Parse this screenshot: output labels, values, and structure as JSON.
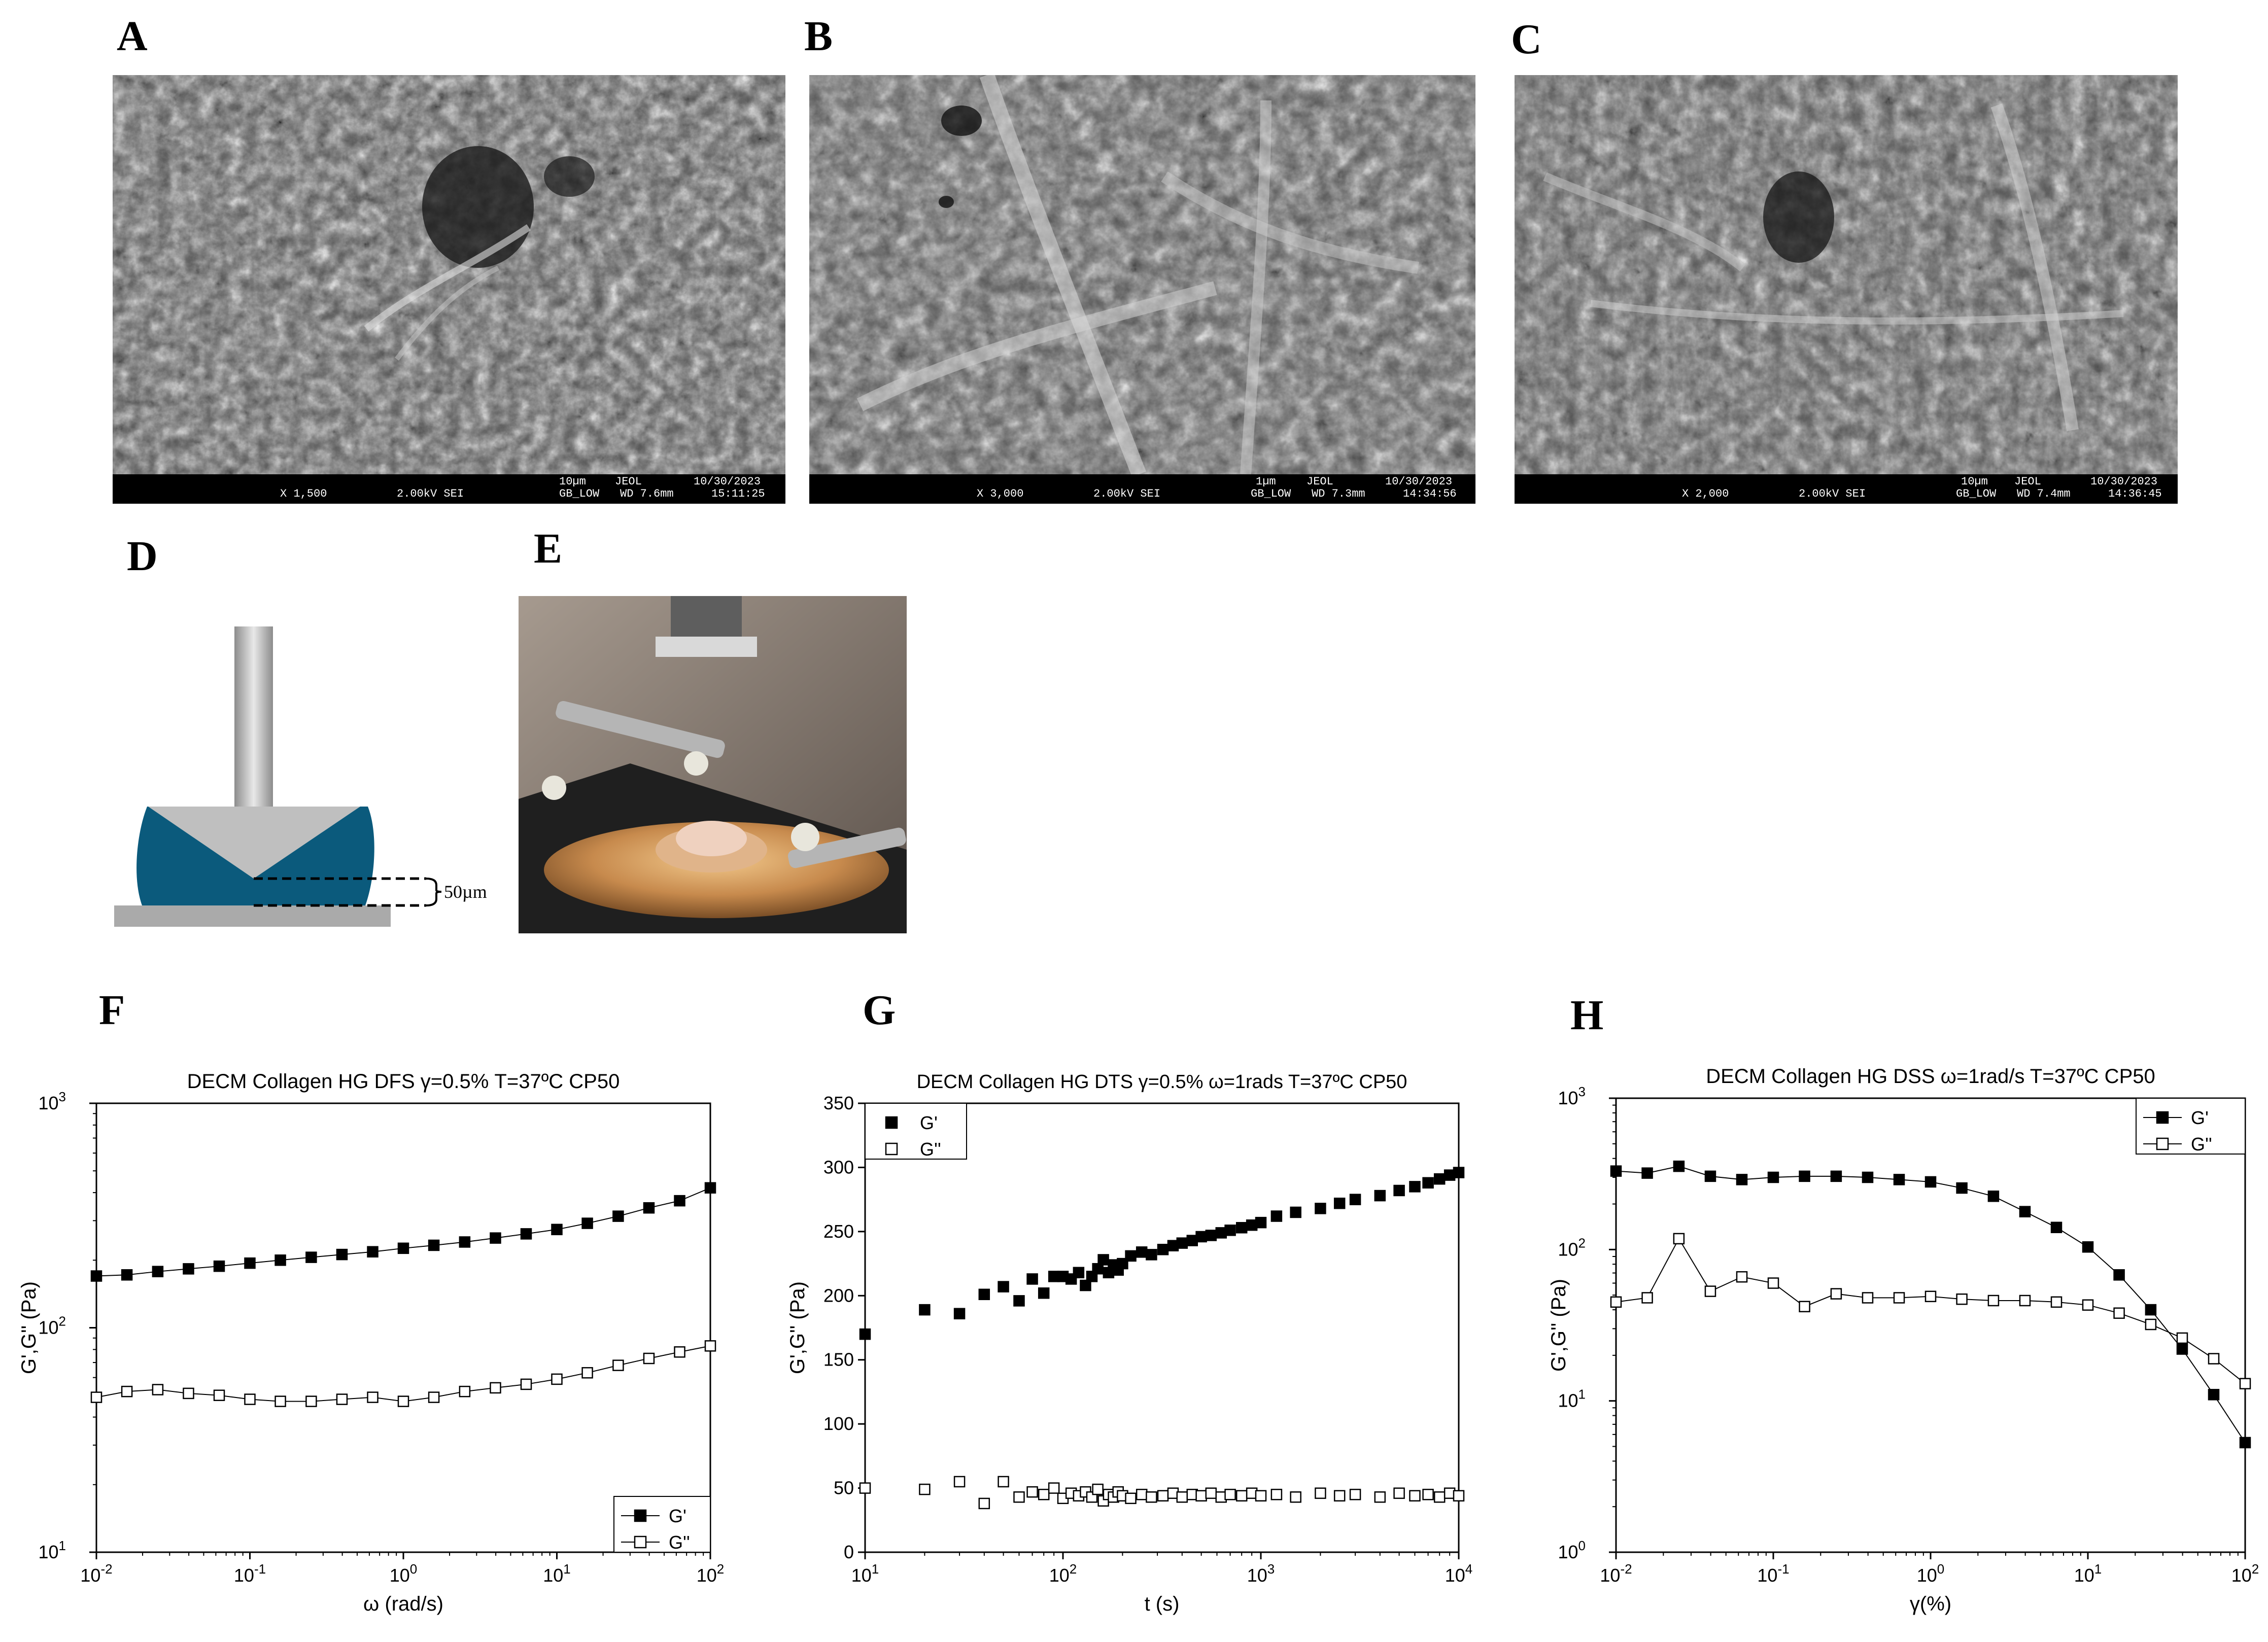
{
  "figure": {
    "panels": {
      "A": {
        "letter": "A",
        "sem_info": {
          "mag": "X 1,500",
          "kv": "2.00kV SEI",
          "scale": "10µm",
          "make": "JEOL",
          "date": "10/30/2023",
          "mode": "GB_LOW",
          "wd": "WD 7.6mm",
          "time": "15:11:25"
        }
      },
      "B": {
        "letter": "B",
        "sem_info": {
          "mag": "X 3,000",
          "kv": "2.00kV SEI",
          "scale": "1µm",
          "make": "JEOL",
          "date": "10/30/2023",
          "mode": "GB_LOW",
          "wd": "WD 7.3mm",
          "time": "14:34:56"
        }
      },
      "C": {
        "letter": "C",
        "sem_info": {
          "mag": "X 2,000",
          "kv": "2.00kV SEI",
          "scale": "10µm",
          "make": "JEOL",
          "date": "10/30/2023",
          "mode": "GB_LOW",
          "wd": "WD 7.4mm",
          "time": "14:36:45"
        }
      },
      "D": {
        "letter": "D",
        "gap_label": "50µm"
      },
      "E": {
        "letter": "E"
      },
      "F": {
        "letter": "F"
      },
      "G": {
        "letter": "G"
      },
      "H": {
        "letter": "H"
      }
    },
    "colors": {
      "geometry_blue": "#0b5a7c",
      "plate_gray": "#aaaaaa",
      "shaft_gray": "#b5b5b5"
    }
  },
  "chart_data": [
    {
      "id": "F",
      "type": "line",
      "title": "DECM Collagen HG DFS γ=0.5% T=37ºC CP50",
      "xlabel": "ω (rad/s)",
      "ylabel": "G',G'' (Pa)",
      "xscale": "log",
      "yscale": "log",
      "xlim": [
        0.01,
        100
      ],
      "ylim": [
        10,
        1000
      ],
      "xticks": [
        {
          "v": 0.01,
          "b": "10",
          "e": "-2"
        },
        {
          "v": 0.1,
          "b": "10",
          "e": "-1"
        },
        {
          "v": 1,
          "b": "10",
          "e": "0"
        },
        {
          "v": 10,
          "b": "10",
          "e": "1"
        },
        {
          "v": 100,
          "b": "10",
          "e": "2"
        }
      ],
      "yticks": [
        {
          "v": 10,
          "b": "10",
          "e": "1"
        },
        {
          "v": 100,
          "b": "10",
          "e": "2"
        },
        {
          "v": 1000,
          "b": "10",
          "e": "3"
        }
      ],
      "legend_position": "bottom-right",
      "series": [
        {
          "name": "G'",
          "marker": "filled-square",
          "connected": true,
          "x": [
            0.01,
            0.0158,
            0.0251,
            0.0398,
            0.0631,
            0.1,
            0.158,
            0.251,
            0.398,
            0.631,
            1,
            1.58,
            2.51,
            3.98,
            6.31,
            10,
            15.8,
            25.1,
            39.8,
            63.1,
            100
          ],
          "y": [
            170,
            172,
            178,
            183,
            188,
            194,
            200,
            206,
            212,
            218,
            226,
            233,
            241,
            251,
            262,
            274,
            292,
            314,
            342,
            368,
            420
          ]
        },
        {
          "name": "G''",
          "marker": "open-square",
          "connected": true,
          "x": [
            0.01,
            0.0158,
            0.0251,
            0.0398,
            0.0631,
            0.1,
            0.158,
            0.251,
            0.398,
            0.631,
            1,
            1.58,
            2.51,
            3.98,
            6.31,
            10,
            15.8,
            25.1,
            39.8,
            63.1,
            100
          ],
          "y": [
            49,
            52,
            53,
            51,
            50,
            48,
            47,
            47,
            48,
            49,
            47,
            49,
            52,
            54,
            56,
            59,
            63,
            68,
            73,
            78,
            83
          ]
        }
      ]
    },
    {
      "id": "G",
      "type": "scatter",
      "title": "DECM Collagen HG DTS γ=0.5% ω=1rads T=37ºC CP50",
      "xlabel": "t (s)",
      "ylabel": "G',G'' (Pa)",
      "xscale": "log",
      "yscale": "linear",
      "xlim": [
        10,
        10000
      ],
      "ylim": [
        0,
        350
      ],
      "xticks": [
        {
          "v": 10,
          "b": "10",
          "e": "1"
        },
        {
          "v": 100,
          "b": "10",
          "e": "2"
        },
        {
          "v": 1000,
          "b": "10",
          "e": "3"
        },
        {
          "v": 10000,
          "b": "10",
          "e": "4"
        }
      ],
      "yticks": [
        {
          "v": 0,
          "b": "0"
        },
        {
          "v": 50,
          "b": "50"
        },
        {
          "v": 100,
          "b": "100"
        },
        {
          "v": 150,
          "b": "150"
        },
        {
          "v": 200,
          "b": "200"
        },
        {
          "v": 250,
          "b": "250"
        },
        {
          "v": 300,
          "b": "300"
        },
        {
          "v": 350,
          "b": "350"
        }
      ],
      "legend_position": "top-left",
      "series": [
        {
          "name": "G'",
          "marker": "filled-square",
          "connected": false,
          "x": [
            10,
            20,
            30,
            40,
            50,
            60,
            70,
            80,
            90,
            100,
            110,
            120,
            130,
            140,
            150,
            160,
            170,
            180,
            190,
            200,
            220,
            250,
            280,
            320,
            360,
            400,
            450,
            500,
            560,
            630,
            700,
            800,
            900,
            1000,
            1200,
            1500,
            2000,
            2500,
            3000,
            4000,
            5000,
            6000,
            7000,
            8000,
            9000,
            10000
          ],
          "y": [
            170,
            189,
            186,
            201,
            207,
            196,
            213,
            202,
            215,
            215,
            213,
            218,
            208,
            215,
            221,
            228,
            218,
            224,
            220,
            225,
            231,
            234,
            232,
            236,
            239,
            241,
            243,
            246,
            247,
            249,
            251,
            253,
            255,
            257,
            262,
            265,
            268,
            272,
            275,
            278,
            282,
            285,
            288,
            291,
            294,
            296
          ]
        },
        {
          "name": "G''",
          "marker": "open-square",
          "connected": false,
          "x": [
            10,
            20,
            30,
            40,
            50,
            60,
            70,
            80,
            90,
            100,
            110,
            120,
            130,
            140,
            150,
            160,
            170,
            180,
            190,
            200,
            220,
            250,
            280,
            320,
            360,
            400,
            450,
            500,
            560,
            630,
            700,
            800,
            900,
            1000,
            1200,
            1500,
            2000,
            2500,
            3000,
            4000,
            5000,
            6000,
            7000,
            8000,
            9000,
            10000
          ],
          "y": [
            50,
            49,
            55,
            38,
            55,
            43,
            47,
            45,
            50,
            42,
            46,
            44,
            47,
            43,
            49,
            40,
            45,
            43,
            47,
            44,
            42,
            45,
            43,
            44,
            46,
            43,
            45,
            44,
            46,
            43,
            45,
            44,
            46,
            44,
            45,
            43,
            46,
            44,
            45,
            43,
            46,
            44,
            45,
            43,
            46,
            44
          ]
        }
      ]
    },
    {
      "id": "H",
      "type": "line",
      "title": "DECM Collagen HG DSS ω=1rad/s T=37ºC CP50",
      "xlabel": "γ(%)",
      "ylabel": "G',G'' (Pa)",
      "xscale": "log",
      "yscale": "log",
      "xlim": [
        0.01,
        100
      ],
      "ylim": [
        1,
        1000
      ],
      "xticks": [
        {
          "v": 0.01,
          "b": "10",
          "e": "-2"
        },
        {
          "v": 0.1,
          "b": "10",
          "e": "-1"
        },
        {
          "v": 1,
          "b": "10",
          "e": "0"
        },
        {
          "v": 10,
          "b": "10",
          "e": "1"
        },
        {
          "v": 100,
          "b": "10",
          "e": "2"
        }
      ],
      "yticks": [
        {
          "v": 1,
          "b": "10",
          "e": "0"
        },
        {
          "v": 10,
          "b": "10",
          "e": "1"
        },
        {
          "v": 100,
          "b": "10",
          "e": "2"
        },
        {
          "v": 1000,
          "b": "10",
          "e": "3"
        }
      ],
      "legend_position": "top-right",
      "series": [
        {
          "name": "G'",
          "marker": "filled-square",
          "connected": true,
          "x": [
            0.01,
            0.0158,
            0.0251,
            0.0398,
            0.0631,
            0.1,
            0.158,
            0.251,
            0.398,
            0.631,
            1,
            1.58,
            2.51,
            3.98,
            6.31,
            10,
            15.8,
            25.1,
            39.8,
            63.1,
            100
          ],
          "y": [
            330,
            320,
            355,
            305,
            290,
            300,
            305,
            305,
            300,
            290,
            280,
            255,
            225,
            178,
            140,
            104,
            68,
            40,
            22,
            11,
            5.3
          ]
        },
        {
          "name": "G''",
          "marker": "open-square",
          "connected": true,
          "x": [
            0.01,
            0.0158,
            0.0251,
            0.0398,
            0.0631,
            0.1,
            0.158,
            0.251,
            0.398,
            0.631,
            1,
            1.58,
            2.51,
            3.98,
            6.31,
            10,
            15.8,
            25.1,
            39.8,
            63.1,
            100
          ],
          "y": [
            45,
            48,
            118,
            53,
            66,
            60,
            42,
            51,
            48,
            48,
            49,
            47,
            46,
            46,
            45,
            43,
            38,
            32,
            26,
            19,
            13
          ]
        }
      ]
    }
  ]
}
